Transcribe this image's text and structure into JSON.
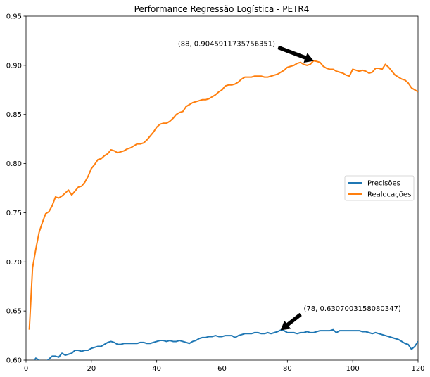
{
  "chart_data": {
    "type": "line",
    "title": "Performance Regressão Logística - PETR4",
    "xlabel": "",
    "ylabel": "",
    "xlim": [
      0,
      120
    ],
    "ylim": [
      0.6,
      0.95
    ],
    "xticks": [
      0,
      20,
      40,
      60,
      80,
      100,
      120
    ],
    "yticks": [
      0.6,
      0.65,
      0.7,
      0.75,
      0.8,
      0.85,
      0.9,
      0.95
    ],
    "xtick_labels": [
      "0",
      "20",
      "40",
      "60",
      "80",
      "100",
      "120"
    ],
    "ytick_labels": [
      "0.60",
      "0.65",
      "0.70",
      "0.75",
      "0.80",
      "0.85",
      "0.90",
      "0.95"
    ],
    "grid": false,
    "legend_position": "center-right",
    "x": [
      1,
      2,
      3,
      4,
      5,
      6,
      7,
      8,
      9,
      10,
      11,
      12,
      13,
      14,
      15,
      16,
      17,
      18,
      19,
      20,
      21,
      22,
      23,
      24,
      25,
      26,
      27,
      28,
      29,
      30,
      31,
      32,
      33,
      34,
      35,
      36,
      37,
      38,
      39,
      40,
      41,
      42,
      43,
      44,
      45,
      46,
      47,
      48,
      49,
      50,
      51,
      52,
      53,
      54,
      55,
      56,
      57,
      58,
      59,
      60,
      61,
      62,
      63,
      64,
      65,
      66,
      67,
      68,
      69,
      70,
      71,
      72,
      73,
      74,
      75,
      76,
      77,
      78,
      79,
      80,
      81,
      82,
      83,
      84,
      85,
      86,
      87,
      88,
      89,
      90,
      91,
      92,
      93,
      94,
      95,
      96,
      97,
      98,
      99,
      100,
      101,
      102,
      103,
      104,
      105,
      106,
      107,
      108,
      109,
      110,
      111,
      112,
      113,
      114,
      115,
      116,
      117,
      118,
      119,
      120
    ],
    "series": [
      {
        "name": "Precisões",
        "color": "#1f77b4",
        "values": [
          0.598,
          0.597,
          0.602,
          0.6,
          0.596,
          0.598,
          0.601,
          0.604,
          0.604,
          0.603,
          0.607,
          0.605,
          0.606,
          0.607,
          0.61,
          0.61,
          0.609,
          0.61,
          0.61,
          0.612,
          0.613,
          0.614,
          0.614,
          0.616,
          0.618,
          0.619,
          0.618,
          0.616,
          0.616,
          0.617,
          0.617,
          0.617,
          0.617,
          0.617,
          0.618,
          0.618,
          0.617,
          0.617,
          0.618,
          0.619,
          0.62,
          0.62,
          0.619,
          0.62,
          0.619,
          0.619,
          0.62,
          0.619,
          0.618,
          0.617,
          0.619,
          0.62,
          0.622,
          0.623,
          0.623,
          0.624,
          0.624,
          0.625,
          0.624,
          0.624,
          0.625,
          0.625,
          0.625,
          0.623,
          0.625,
          0.626,
          0.627,
          0.627,
          0.627,
          0.628,
          0.628,
          0.627,
          0.627,
          0.628,
          0.627,
          0.628,
          0.629,
          0.6307,
          0.63,
          0.628,
          0.628,
          0.628,
          0.627,
          0.628,
          0.628,
          0.629,
          0.628,
          0.628,
          0.629,
          0.63,
          0.63,
          0.63,
          0.63,
          0.631,
          0.628,
          0.63,
          0.63,
          0.63,
          0.63,
          0.63,
          0.63,
          0.63,
          0.629,
          0.629,
          0.628,
          0.627,
          0.628,
          0.627,
          0.626,
          0.625,
          0.624,
          0.623,
          0.622,
          0.621,
          0.619,
          0.617,
          0.616,
          0.611,
          0.614,
          0.619
        ]
      },
      {
        "name": "Realocações",
        "color": "#ff7f0e",
        "values": [
          0.631,
          0.694,
          0.713,
          0.73,
          0.74,
          0.749,
          0.751,
          0.757,
          0.766,
          0.765,
          0.767,
          0.77,
          0.773,
          0.768,
          0.772,
          0.776,
          0.777,
          0.781,
          0.787,
          0.795,
          0.799,
          0.804,
          0.805,
          0.808,
          0.81,
          0.814,
          0.813,
          0.811,
          0.812,
          0.813,
          0.815,
          0.816,
          0.818,
          0.82,
          0.82,
          0.821,
          0.824,
          0.828,
          0.832,
          0.837,
          0.84,
          0.841,
          0.841,
          0.843,
          0.846,
          0.85,
          0.852,
          0.853,
          0.858,
          0.86,
          0.862,
          0.863,
          0.864,
          0.865,
          0.865,
          0.866,
          0.868,
          0.87,
          0.873,
          0.875,
          0.879,
          0.88,
          0.88,
          0.881,
          0.883,
          0.886,
          0.888,
          0.888,
          0.888,
          0.889,
          0.889,
          0.889,
          0.888,
          0.888,
          0.889,
          0.89,
          0.891,
          0.893,
          0.895,
          0.898,
          0.899,
          0.9,
          0.902,
          0.903,
          0.901,
          0.9,
          0.901,
          0.9046,
          0.904,
          0.903,
          0.899,
          0.897,
          0.896,
          0.896,
          0.894,
          0.893,
          0.892,
          0.89,
          0.889,
          0.896,
          0.895,
          0.894,
          0.895,
          0.894,
          0.892,
          0.893,
          0.897,
          0.897,
          0.896,
          0.901,
          0.898,
          0.894,
          0.89,
          0.888,
          0.886,
          0.885,
          0.882,
          0.877,
          0.875,
          0.873
        ]
      }
    ],
    "annotations": [
      {
        "text": "(88, 0.9045911735756351)",
        "x": 88,
        "y": 0.9045911735756351,
        "text_x": 46.5,
        "text_y": 0.9195
      },
      {
        "text": "(78, 0.6307003158080347)",
        "x": 78,
        "y": 0.6307003158080347,
        "text_x": 85,
        "text_y": 0.65
      }
    ]
  }
}
